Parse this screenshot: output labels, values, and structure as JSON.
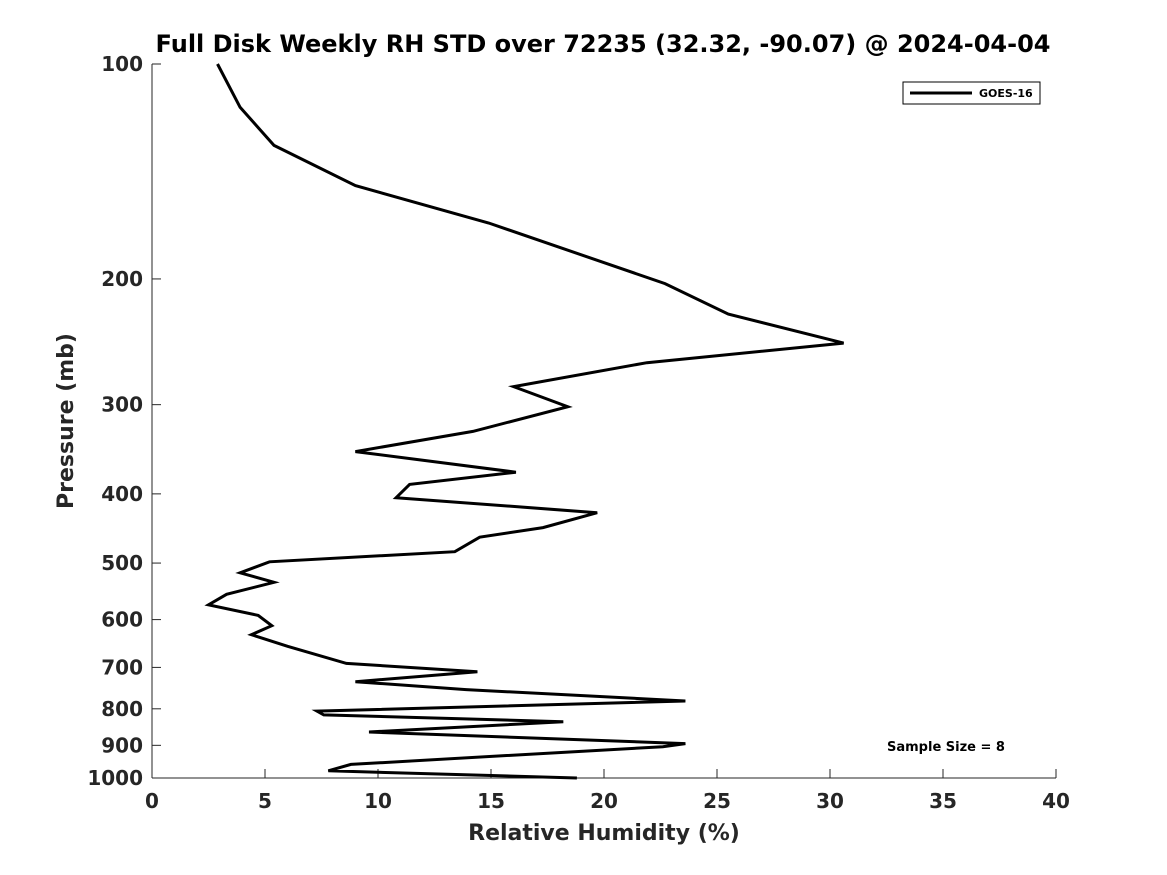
{
  "chart_data": {
    "type": "line",
    "title": "Full Disk Weekly RH STD over 72235 (32.32, -90.07) @ 2024-04-04",
    "xlabel": "Relative Humidity (%)",
    "ylabel": "Pressure (mb)",
    "xlim": [
      0,
      40
    ],
    "ylim": [
      100,
      1000
    ],
    "yscale": "log",
    "y_reversed": true,
    "grid": false,
    "legend_position": "top-right",
    "x_ticks": [
      "0",
      "5",
      "10",
      "15",
      "20",
      "25",
      "30",
      "35",
      "40"
    ],
    "y_ticks": [
      "100",
      "200",
      "300",
      "400",
      "500",
      "600",
      "700",
      "800",
      "900",
      "1000"
    ],
    "series": [
      {
        "name": "GOES-16",
        "color": "#000000",
        "x": [
          2.9,
          3.9,
          5.4,
          9.0,
          14.9,
          22.7,
          25.5,
          30.6,
          21.9,
          16.0,
          18.4,
          14.2,
          9.0,
          16.1,
          11.4,
          10.8,
          19.7,
          17.3,
          14.5,
          13.4,
          5.2,
          3.9,
          5.4,
          3.3,
          2.5,
          4.7,
          5.3,
          4.4,
          6.0,
          8.6,
          14.4,
          9.0,
          13.9,
          23.6,
          7.3,
          7.6,
          18.2,
          9.6,
          23.6,
          22.6,
          8.8,
          7.8,
          18.8
        ],
        "y": [
          100,
          115,
          130,
          148,
          167,
          203,
          224,
          246,
          262,
          283,
          302,
          327,
          349,
          373,
          388,
          405,
          425,
          446,
          460,
          482,
          498,
          516,
          532,
          553,
          572,
          592,
          612,
          630,
          654,
          691,
          710,
          733,
          752,
          780,
          806,
          816,
          834,
          862,
          895,
          904,
          957,
          977,
          1000
        ]
      }
    ],
    "annotations": [
      "Sample Size = 8"
    ]
  }
}
